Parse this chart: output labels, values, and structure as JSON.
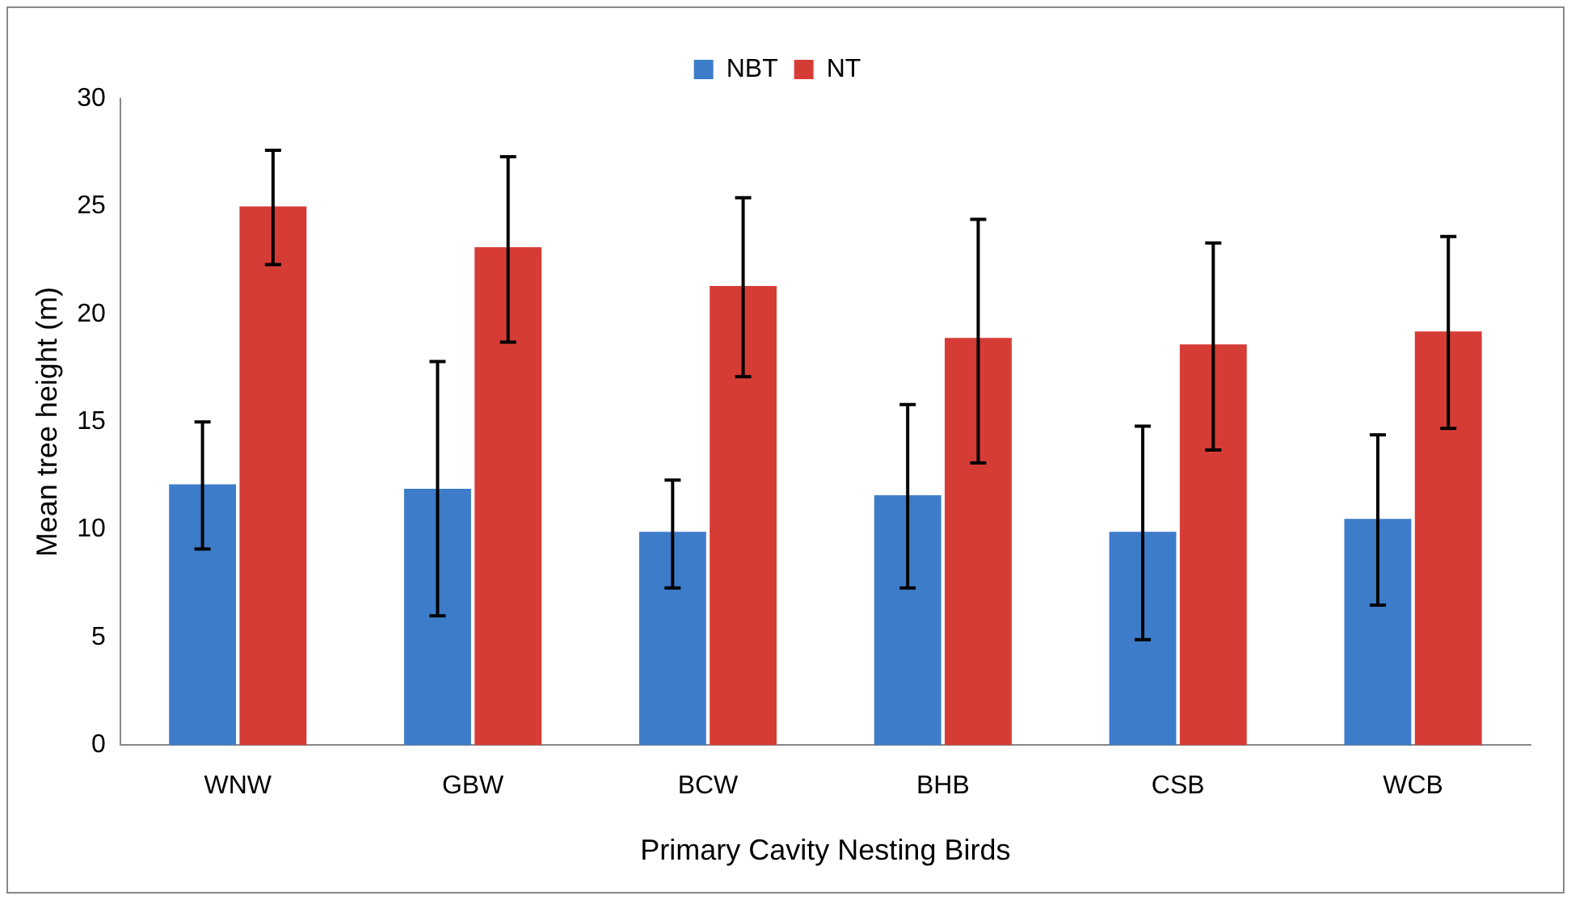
{
  "chart_data": {
    "type": "bar",
    "xlabel": "Primary Cavity Nesting Birds",
    "ylabel": "Mean tree height (m)",
    "categories": [
      "WNW",
      "GBW",
      "BCW",
      "BHB",
      "CSB",
      "WCB"
    ],
    "series": [
      {
        "name": "NBT",
        "color": "#3d7cc9",
        "values": [
          12.1,
          11.9,
          9.9,
          11.6,
          9.9,
          10.5
        ],
        "errors": [
          [
            9.1,
            15.0
          ],
          [
            6.0,
            17.8
          ],
          [
            7.3,
            12.3
          ],
          [
            7.3,
            15.8
          ],
          [
            4.9,
            14.8
          ],
          [
            6.5,
            14.4
          ]
        ]
      },
      {
        "name": "NT",
        "color": "#d63c36",
        "values": [
          25.0,
          23.1,
          21.3,
          18.9,
          18.6,
          19.2
        ],
        "errors": [
          [
            22.3,
            27.6
          ],
          [
            18.7,
            27.3
          ],
          [
            17.1,
            25.4
          ],
          [
            13.1,
            24.4
          ],
          [
            13.7,
            23.3
          ],
          [
            14.7,
            23.6
          ]
        ]
      }
    ],
    "ylim": [
      0,
      30
    ],
    "yticks": [
      0,
      5,
      10,
      15,
      20,
      25,
      30
    ],
    "grid": false,
    "legend": "top"
  }
}
